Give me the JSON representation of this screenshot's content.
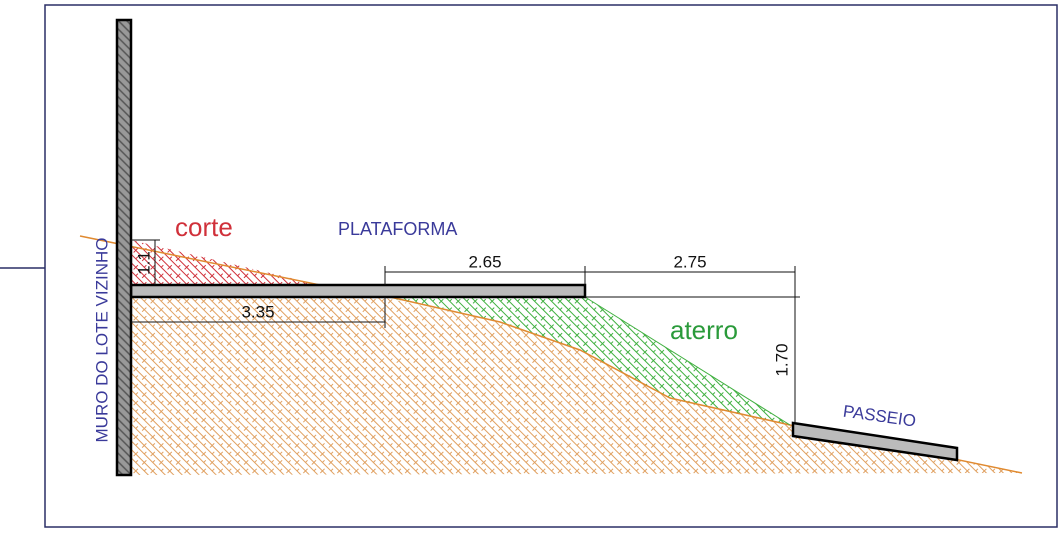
{
  "labels": {
    "wall": "MURO DO LOTE VIZINHO",
    "cut": "corte",
    "platform": "PLATAFORMA",
    "fill": "aterro",
    "sidewalk": "PASSEIO"
  },
  "dimensions": {
    "cut_height": "1.1",
    "platform_width": "2.65",
    "slope_width": "2.75",
    "wall_offset": "3.35",
    "height": "1.70"
  }
}
